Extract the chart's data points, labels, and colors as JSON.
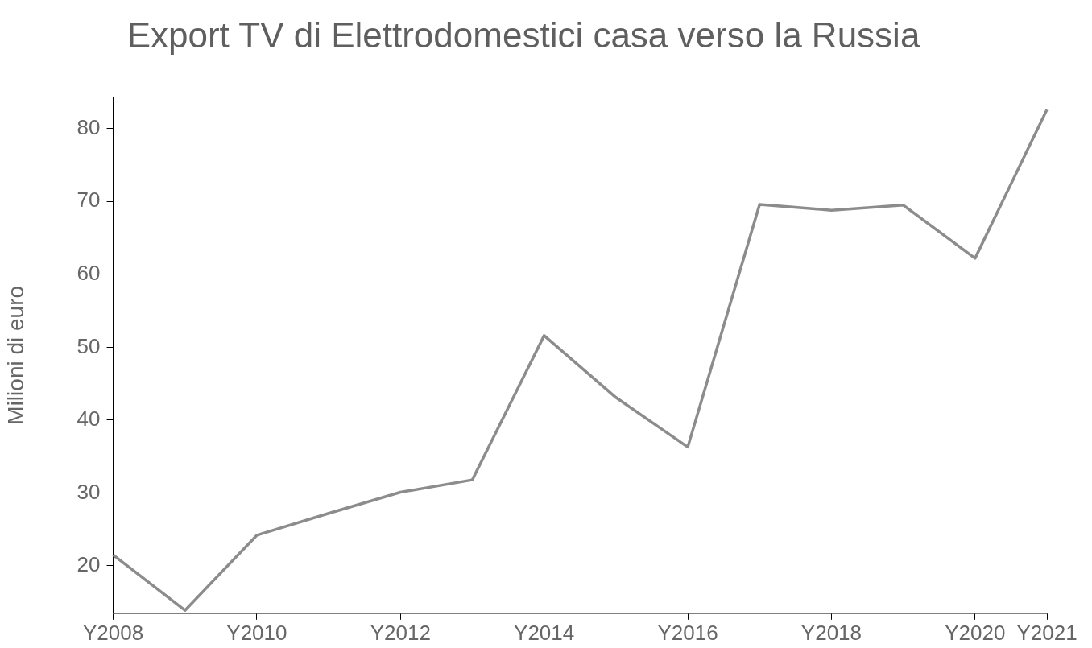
{
  "chart_data": {
    "type": "line",
    "title": "Export TV di Elettrodomestici casa verso la Russia",
    "ylabel": "Milioni di euro",
    "categories": [
      "Y2008",
      null,
      "Y2010",
      null,
      "Y2012",
      null,
      "Y2014",
      null,
      "Y2016",
      null,
      "Y2018",
      null,
      "Y2020",
      "Y2021"
    ],
    "series": [
      {
        "color": "#8c8c8c",
        "values": [
          21.5,
          13.9,
          24.2,
          27.2,
          30.1,
          31.8,
          51.6,
          43.1,
          36.3,
          69.6,
          68.8,
          69.5,
          62.2,
          82.6
        ]
      }
    ],
    "ylim": [
      13.5,
      84.3
    ],
    "yticks": [
      20,
      30,
      40,
      50,
      60,
      70,
      80
    ],
    "grid": false,
    "legend": false,
    "marker": "none",
    "line_style": "solid"
  }
}
